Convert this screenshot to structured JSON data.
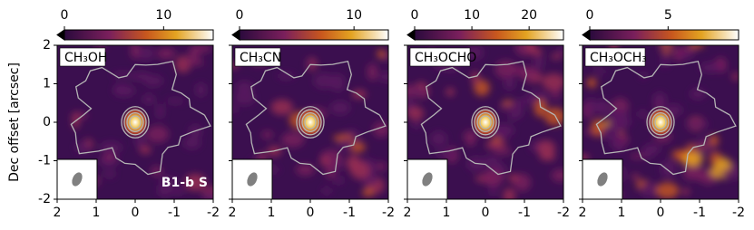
{
  "chart_data": [
    {
      "type": "heatmap",
      "title": "CH₃OH",
      "annotation": "B1-b S",
      "ylabel": "Dec offset [arcsec]",
      "xlim": [
        2,
        -2
      ],
      "ylim": [
        -2,
        2
      ],
      "xticks": [
        2,
        1,
        0,
        -1,
        -2
      ],
      "yticks": [
        -2,
        -1,
        0,
        1,
        2
      ],
      "colorbar": {
        "lim": [
          0,
          15
        ],
        "ticks": [
          0,
          10
        ]
      }
    },
    {
      "type": "heatmap",
      "title": "CH₃CN",
      "xlim": [
        2,
        -2
      ],
      "ylim": [
        -2,
        2
      ],
      "xticks": [
        2,
        1,
        0,
        -1,
        -2
      ],
      "colorbar": {
        "lim": [
          0,
          13
        ],
        "ticks": [
          0,
          10
        ]
      }
    },
    {
      "type": "heatmap",
      "title": "CH₃OCHO",
      "xlim": [
        2,
        -2
      ],
      "ylim": [
        -2,
        2
      ],
      "xticks": [
        2,
        1,
        0,
        -1,
        -2
      ],
      "colorbar": {
        "lim": [
          0,
          26
        ],
        "ticks": [
          0,
          10,
          20
        ]
      }
    },
    {
      "type": "heatmap",
      "title": "CH₃OCH₃",
      "xlim": [
        2,
        -2
      ],
      "ylim": [
        -2,
        2
      ],
      "xticks": [
        2,
        1,
        0,
        -1,
        -2
      ],
      "colorbar": {
        "lim": [
          0,
          9.5
        ],
        "ticks": [
          0,
          5
        ]
      }
    }
  ]
}
